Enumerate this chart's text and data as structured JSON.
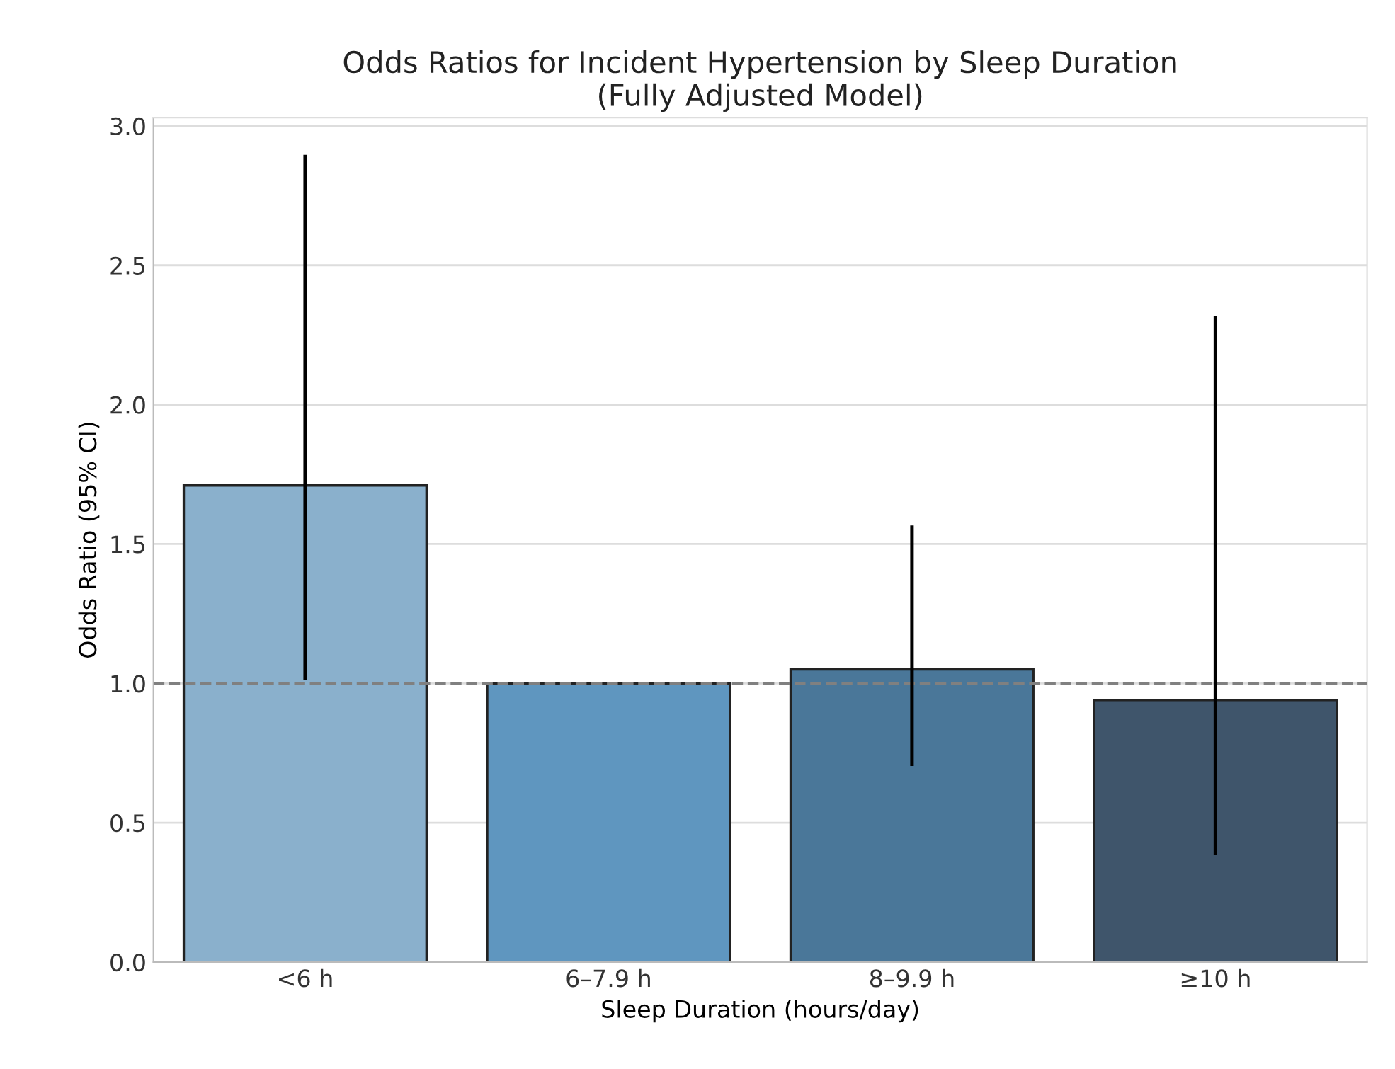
{
  "chart_data": {
    "type": "bar",
    "title": "Odds Ratios for Incident Hypertension by Sleep Duration\n(Fully Adjusted Model)",
    "xlabel": "Sleep Duration (hours/day)",
    "ylabel": "Odds Ratio (95% CI)",
    "categories": [
      "<6 h",
      "6–7.9 h",
      "8–9.9 h",
      "≥10 h"
    ],
    "values": [
      1.71,
      1.0,
      1.05,
      0.94
    ],
    "colors": [
      "#8ab0cc",
      "#5f96bf",
      "#4a7799",
      "#3f556b"
    ],
    "errors": [
      [
        1.02,
        2.89
      ],
      null,
      [
        0.71,
        1.56
      ],
      [
        0.39,
        2.31
      ]
    ],
    "ylim": [
      0,
      3.03
    ],
    "yticks": [
      {
        "value": 0,
        "label": "0.0"
      },
      {
        "value": 0.5,
        "label": "0.5"
      },
      {
        "value": 1,
        "label": "1.0"
      },
      {
        "value": 1.5,
        "label": "1.5"
      },
      {
        "value": 2,
        "label": "2.0"
      },
      {
        "value": 2.5,
        "label": "2.5"
      },
      {
        "value": 3,
        "label": "3.0"
      }
    ],
    "grid": "y",
    "ref_lines": [
      {
        "axis": "y",
        "value": 1.0,
        "color": "#808080",
        "line_style": "dashed"
      }
    ]
  }
}
